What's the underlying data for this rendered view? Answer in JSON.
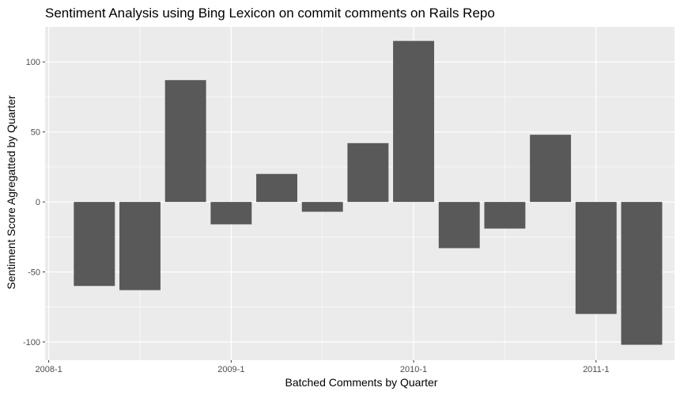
{
  "chart_data": {
    "type": "bar",
    "title": "Sentiment Analysis using Bing Lexicon on commit comments on Rails Repo",
    "xlabel": "Batched Comments by Quarter",
    "ylabel": "Sentiment Score Agregatted by Quarter",
    "x": [
      2008.25,
      2008.5,
      2008.75,
      2009.0,
      2009.25,
      2009.5,
      2009.75,
      2010.0,
      2010.25,
      2010.5,
      2010.75,
      2011.0,
      2011.25
    ],
    "values": [
      -60,
      -63,
      87,
      -16,
      20,
      -7,
      42,
      115,
      -33,
      -19,
      48,
      -80,
      -102
    ],
    "xlim": [
      2007.98,
      2011.43
    ],
    "ylim": [
      -113,
      125
    ],
    "x_ticks": [
      {
        "value": 2008.0,
        "label": "2008-1"
      },
      {
        "value": 2009.0,
        "label": "2009-1"
      },
      {
        "value": 2010.0,
        "label": "2010-1"
      },
      {
        "value": 2011.0,
        "label": "2011-1"
      }
    ],
    "y_ticks": [
      {
        "value": -100,
        "label": "-100"
      },
      {
        "value": -50,
        "label": "-50"
      },
      {
        "value": 0,
        "label": "0"
      },
      {
        "value": 50,
        "label": "50"
      },
      {
        "value": 100,
        "label": "100"
      }
    ],
    "bar_width_years": 0.225,
    "grid": true,
    "colors": {
      "panel": "#ebebeb",
      "grid_major": "#ffffff",
      "bar": "#595959",
      "tick": "#333333"
    }
  }
}
